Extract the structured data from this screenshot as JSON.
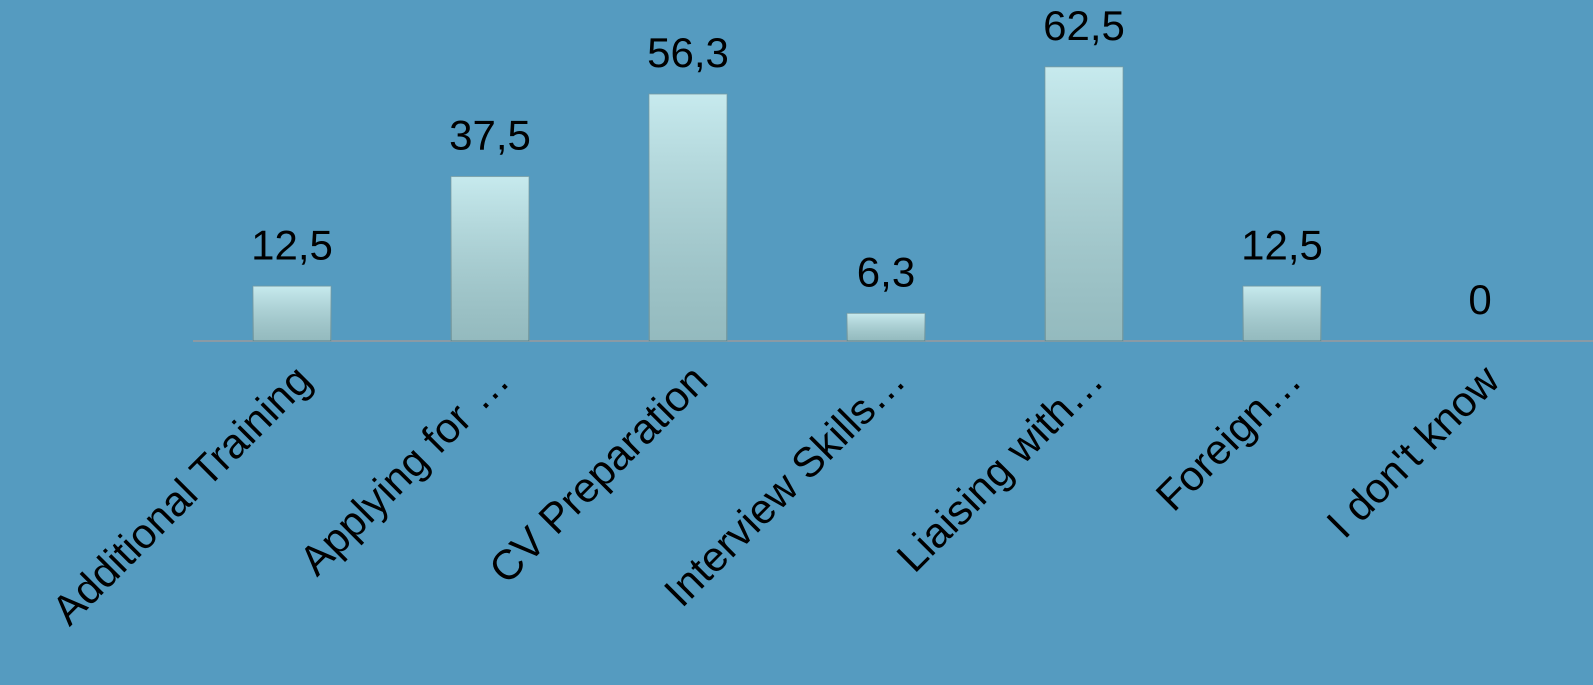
{
  "chart_data": {
    "type": "bar",
    "categories": [
      "Additional Training",
      "Applying for …",
      "CV Preparation",
      "Interview Skills…",
      "Liaising with…",
      "Foreign…",
      "I don't know"
    ],
    "values": [
      12.5,
      37.5,
      56.3,
      6.3,
      62.5,
      12.5,
      0
    ],
    "value_labels": [
      "12,5",
      "37,5",
      "56,3",
      "6,3",
      "62,5",
      "12,5",
      "0"
    ],
    "color": "#b4e3e8",
    "ylim": [
      0,
      70
    ]
  }
}
